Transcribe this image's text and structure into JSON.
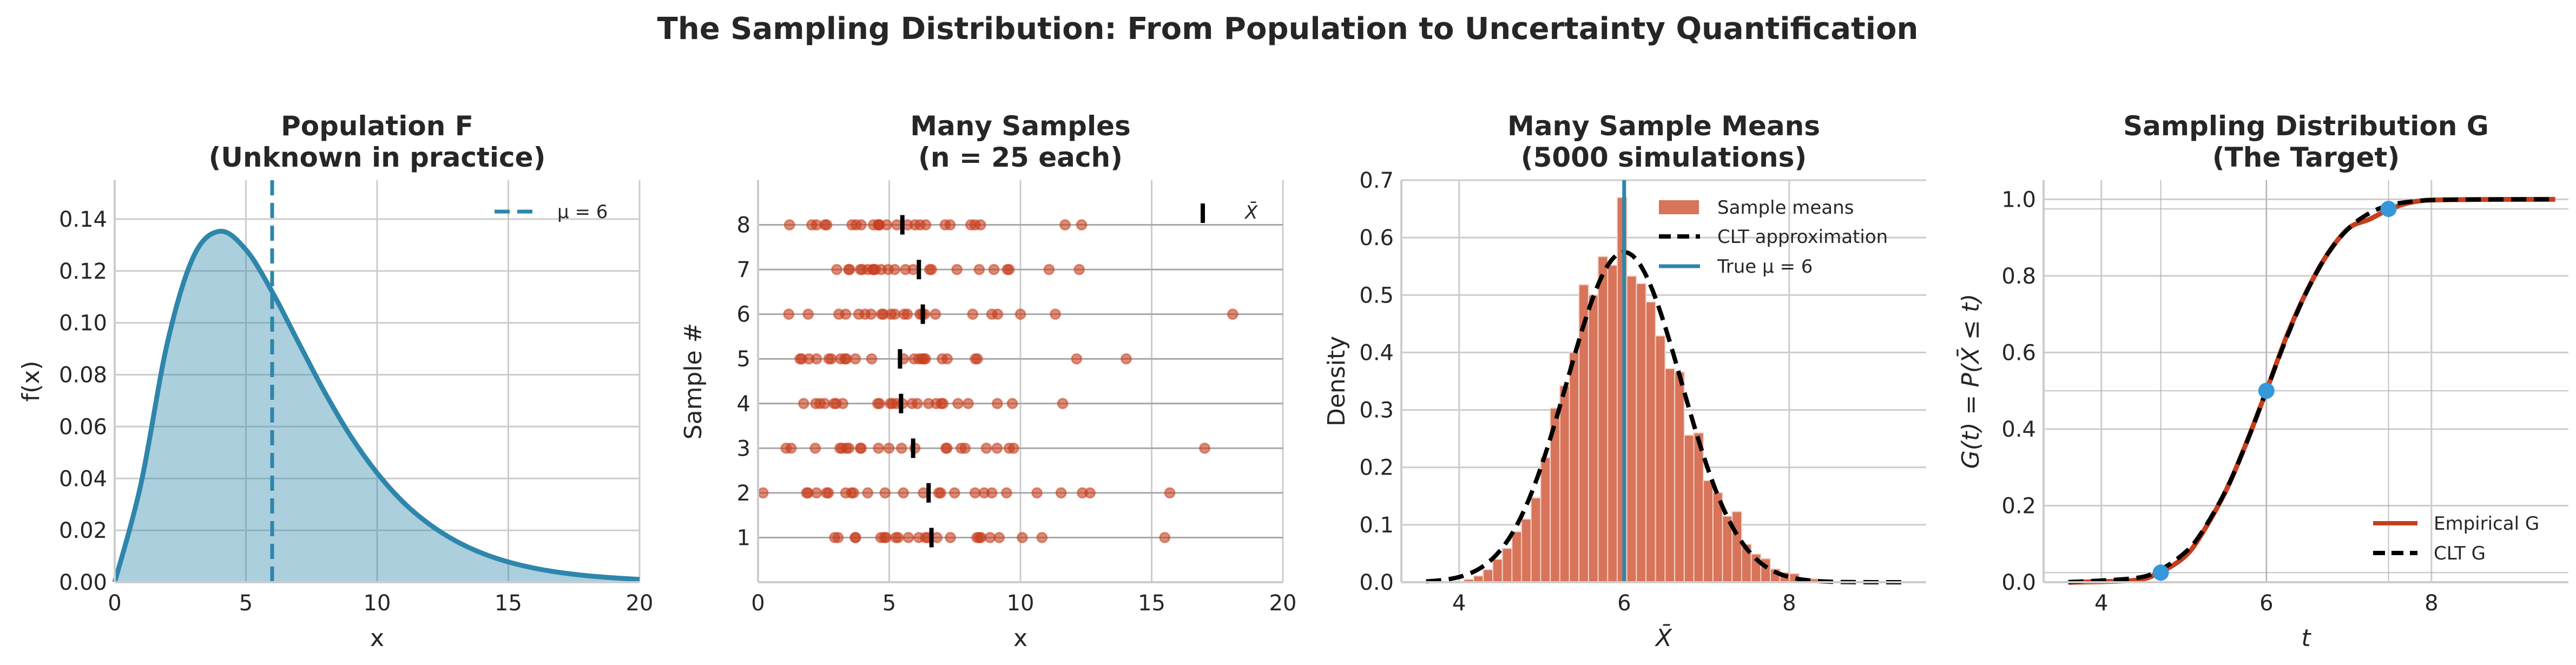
{
  "figure": {
    "title": "The Sampling Distribution: From Population to Uncertainty Quantification",
    "colors": {
      "blue": "#2e86ab",
      "blue_fill": "#a9cddc",
      "red": "#c73e1d",
      "hist": "#d87459",
      "marker": "#3498db",
      "grid": "#cccccc"
    }
  },
  "chart_data": [
    {
      "type": "area",
      "title_lines": [
        "Population F",
        "(Unknown in practice)"
      ],
      "xlabel": "x",
      "ylabel": "f(x)",
      "xlim": [
        0,
        20
      ],
      "ylim": [
        0,
        0.155
      ],
      "xticks": [
        "0",
        "5",
        "10",
        "15",
        "20"
      ],
      "xtick_values": [
        0,
        5,
        10,
        15,
        20
      ],
      "yticks": [
        "0.00",
        "0.02",
        "0.04",
        "0.06",
        "0.08",
        "0.10",
        "0.12",
        "0.14"
      ],
      "ytick_values": [
        0,
        0.02,
        0.04,
        0.06,
        0.08,
        0.1,
        0.12,
        0.14
      ],
      "grid": true,
      "legend": "top-right",
      "curve": {
        "x": [
          0,
          1,
          2,
          3,
          4,
          5,
          6,
          7,
          8,
          9,
          10,
          11,
          12,
          13,
          14,
          15,
          16,
          17,
          18,
          19,
          20
        ],
        "y": [
          0,
          0.0379,
          0.092,
          0.1255,
          0.1353,
          0.1282,
          0.112,
          0.0925,
          0.0733,
          0.0562,
          0.0421,
          0.0308,
          0.0223,
          0.0159,
          0.0112,
          0.0078,
          0.0054,
          0.0037,
          0.0025,
          0.0017,
          0.0011
        ]
      },
      "mean_line": {
        "x": 6,
        "label": "μ = 6"
      }
    },
    {
      "type": "scatter",
      "title_lines": [
        "Many Samples",
        "(n = 25 each)"
      ],
      "xlabel": "x",
      "ylabel": "Sample #",
      "xlim": [
        0,
        20
      ],
      "ylim": [
        0,
        9
      ],
      "xticks": [
        "0",
        "5",
        "10",
        "15",
        "20"
      ],
      "xtick_values": [
        0,
        5,
        10,
        15,
        20
      ],
      "yticks": [
        "1",
        "2",
        "3",
        "4",
        "5",
        "6",
        "7",
        "8"
      ],
      "ytick_values": [
        1,
        2,
        3,
        4,
        5,
        6,
        7,
        8
      ],
      "grid": true,
      "legend": "top-right",
      "legend_label": "X̄",
      "samples": [
        {
          "id": 1,
          "mean": 6.61,
          "x": [
            2.92,
            3.05,
            3.7,
            3.72,
            4.68,
            4.81,
            4.88,
            5.25,
            5.34,
            5.73,
            6.13,
            6.38,
            6.47,
            6.82,
            7.33,
            8.34,
            8.43,
            8.5,
            8.84,
            9.19,
            10.07,
            10.82,
            15.5
          ]
        },
        {
          "id": 2,
          "mean": 6.5,
          "x": [
            0.19,
            1.85,
            1.91,
            2.23,
            2.61,
            2.68,
            3.34,
            3.56,
            3.64,
            4.18,
            4.84,
            5.54,
            6.3,
            6.89,
            6.96,
            7.49,
            8.27,
            8.62,
            8.91,
            9.47,
            10.63,
            11.55,
            12.36,
            12.65,
            15.69
          ]
        },
        {
          "id": 3,
          "mean": 5.91,
          "x": [
            1.07,
            1.26,
            2.18,
            3.12,
            3.2,
            3.37,
            3.46,
            3.9,
            3.93,
            4.59,
            4.99,
            5.47,
            5.98,
            7.16,
            7.2,
            7.74,
            7.89,
            8.7,
            9.11,
            9.57,
            9.74,
            17.02
          ]
        },
        {
          "id": 4,
          "mean": 5.45,
          "x": [
            1.74,
            2.2,
            2.36,
            2.54,
            2.9,
            2.98,
            3.23,
            4.56,
            4.63,
            5.04,
            5.12,
            5.28,
            5.5,
            5.87,
            6.07,
            6.5,
            6.79,
            6.98,
            7.05,
            7.62,
            8.01,
            9.12,
            9.69,
            11.61
          ]
        },
        {
          "id": 5,
          "mean": 5.41,
          "x": [
            1.6,
            1.67,
            1.94,
            2.23,
            2.7,
            2.79,
            3.15,
            3.31,
            3.37,
            3.71,
            4.33,
            5.54,
            5.95,
            6.13,
            6.25,
            6.32,
            6.38,
            7.02,
            7.21,
            8.28,
            8.36,
            12.14,
            14.03
          ]
        },
        {
          "id": 6,
          "mean": 6.28,
          "x": [
            1.17,
            1.91,
            3.08,
            3.34,
            3.84,
            4.08,
            4.31,
            4.71,
            4.78,
            5.07,
            5.21,
            5.57,
            5.69,
            6.17,
            6.25,
            6.35,
            6.76,
            8.18,
            8.91,
            9.13,
            10.0,
            11.33,
            18.09
          ]
        },
        {
          "id": 7,
          "mean": 6.13,
          "x": [
            3.0,
            3.45,
            3.49,
            3.9,
            3.97,
            4.18,
            4.37,
            4.41,
            4.47,
            4.69,
            4.96,
            5.21,
            5.62,
            5.91,
            6.54,
            6.61,
            7.58,
            8.43,
            8.99,
            9.5,
            9.57,
            11.09,
            12.24
          ]
        },
        {
          "id": 8,
          "mean": 5.5,
          "x": [
            1.2,
            2.05,
            2.23,
            2.55,
            2.62,
            3.58,
            3.74,
            3.93,
            4.4,
            4.59,
            4.59,
            4.63,
            4.9,
            5.29,
            5.7,
            5.98,
            6.17,
            6.39,
            7.13,
            7.32,
            8.11,
            8.27,
            8.48,
            11.7,
            12.33
          ]
        }
      ]
    },
    {
      "type": "bar",
      "title_lines": [
        "Many Sample Means",
        "(5000 simulations)"
      ],
      "xlabel": "X̄",
      "ylabel": "Density",
      "xlim": [
        3.3,
        9.66
      ],
      "ylim": [
        0,
        0.7
      ],
      "xticks": [
        "4",
        "6",
        "8"
      ],
      "xtick_values": [
        4,
        6,
        8
      ],
      "yticks": [
        "0.0",
        "0.1",
        "0.2",
        "0.3",
        "0.4",
        "0.5",
        "0.6",
        "0.7"
      ],
      "ytick_values": [
        0,
        0.1,
        0.2,
        0.3,
        0.4,
        0.5,
        0.6,
        0.7
      ],
      "grid": true,
      "legend": "top-right",
      "histogram": {
        "name": "Sample means",
        "bin_start": 4.06,
        "bin_width": 0.116,
        "values": [
          0.005,
          0.011,
          0.022,
          0.04,
          0.059,
          0.088,
          0.11,
          0.147,
          0.217,
          0.303,
          0.342,
          0.4,
          0.518,
          0.5,
          0.567,
          0.552,
          0.67,
          0.533,
          0.52,
          0.488,
          0.429,
          0.372,
          0.366,
          0.256,
          0.26,
          0.177,
          0.156,
          0.115,
          0.123,
          0.066,
          0.049,
          0.041,
          0.023,
          0.017,
          0.015,
          0.007,
          0.006
        ]
      },
      "normal_curve": {
        "name": "CLT approximation",
        "mean": 6,
        "sd": 0.694,
        "x_range": [
          3.6,
          9.4
        ]
      },
      "true_mean": {
        "name": "True μ = 6",
        "x": 6
      }
    },
    {
      "type": "line",
      "title_lines": [
        "Sampling Distribution G",
        "(The Target)"
      ],
      "xlabel": "t",
      "ylabel": "G(t) = P(X̄ ≤ t)",
      "xlim": [
        3.3,
        9.66
      ],
      "ylim": [
        0,
        1.05
      ],
      "xticks": [
        "4",
        "6",
        "8"
      ],
      "xtick_values": [
        4,
        6,
        8
      ],
      "yticks": [
        "0.0",
        "0.2",
        "0.4",
        "0.6",
        "0.8",
        "1.0"
      ],
      "ytick_values": [
        0,
        0.2,
        0.4,
        0.6,
        0.8,
        1.0
      ],
      "grid": true,
      "legend": "bottom-right",
      "series": [
        {
          "name": "Empirical G",
          "x": [
            3.6,
            4.4,
            4.7,
            5.0,
            5.2,
            5.5,
            5.75,
            6.0,
            6.25,
            6.5,
            6.75,
            7.0,
            7.25,
            7.5,
            7.8,
            8.2,
            9.5
          ],
          "y": [
            0.0,
            0.005,
            0.025,
            0.065,
            0.12,
            0.235,
            0.36,
            0.5,
            0.645,
            0.765,
            0.86,
            0.925,
            0.948,
            0.975,
            0.994,
            0.999,
            1.0
          ]
        },
        {
          "name": "CLT G",
          "x": [
            3.6,
            4.4,
            4.7,
            5.0,
            5.2,
            5.5,
            5.75,
            6.0,
            6.25,
            6.5,
            6.75,
            7.0,
            7.25,
            7.5,
            7.8,
            8.2,
            9.5
          ],
          "y": [
            0.0003,
            0.0105,
            0.031,
            0.075,
            0.125,
            0.236,
            0.359,
            0.5,
            0.641,
            0.764,
            0.86,
            0.925,
            0.964,
            0.985,
            0.995,
            0.999,
            1.0
          ]
        }
      ],
      "quantile_points": [
        {
          "t": 4.72,
          "g": 0.025
        },
        {
          "t": 6.0,
          "g": 0.5
        },
        {
          "t": 7.48,
          "g": 0.975
        }
      ]
    }
  ]
}
